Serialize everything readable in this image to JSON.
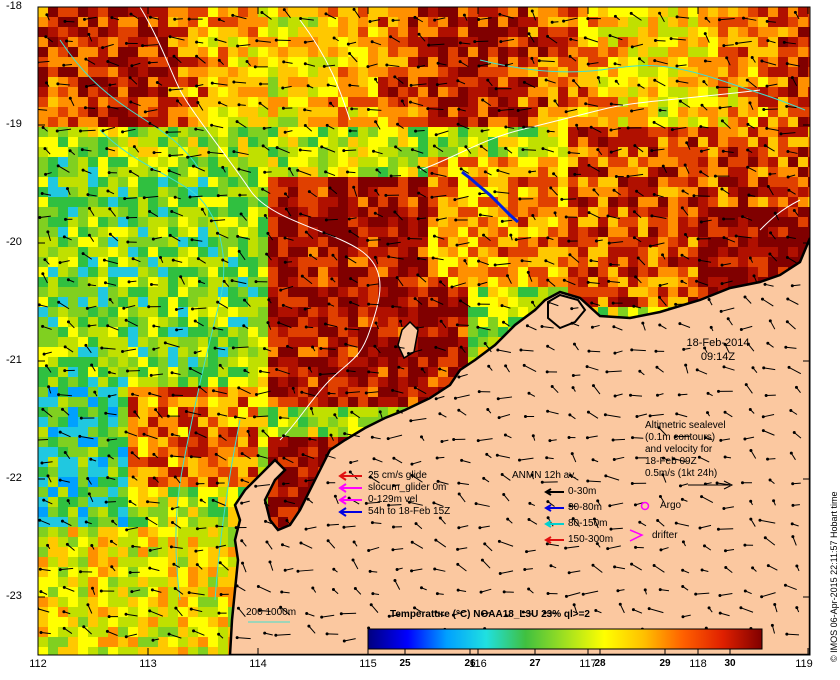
{
  "map": {
    "y_ticks": [
      "-18",
      "-19",
      "-20",
      "-21",
      "-22",
      "-23"
    ],
    "x_ticks": [
      "112",
      "113",
      "114",
      "115",
      "116",
      "117",
      "118",
      "119"
    ],
    "date_line1": "18-Feb-2014",
    "date_line2": "09:14Z",
    "credit": "© IMOS 06-Apr-2015 22:11:57 Hobart time",
    "land_color": "#fbc8a0"
  },
  "legend_glider": {
    "items": [
      {
        "label": "25 cm/s glide",
        "color": "#e01010"
      },
      {
        "label": "slocum_glider 0m",
        "color": "#ff00ff"
      },
      {
        "label": "0-129m vel",
        "color": "#ff00ff"
      },
      {
        "label": "54h to 18-Feb 15Z",
        "color": "#0000e0"
      }
    ]
  },
  "legend_anmn": {
    "title": "ANMN 12h av.",
    "items": [
      {
        "label": "0-30m",
        "color": "#000000"
      },
      {
        "label": "30-80m",
        "color": "#0000e0"
      },
      {
        "label": "80-150m",
        "color": "#00d0d0"
      },
      {
        "label": "150-300m",
        "color": "#e01010"
      }
    ]
  },
  "legend_altimetry": {
    "lines": [
      "Altimetric sealevel",
      "(0.1m contours)",
      "and velocity for",
      "18-Feb 09Z",
      "0.5m/s (1kt 24h)"
    ],
    "argo_label": "Argo",
    "drifter_label": "drifter"
  },
  "bathymetry_label": "200  1000m",
  "colorbar": {
    "title": "Temperature (°C) NOAA18_L3U 23% ql>=2",
    "ticks": [
      "25",
      "26",
      "27",
      "28",
      "29",
      "30"
    ],
    "stops": [
      "#00007f",
      "#0000ff",
      "#00a0ff",
      "#20e0e0",
      "#40c040",
      "#a0e020",
      "#ffff00",
      "#ffc000",
      "#ff6000",
      "#e02000",
      "#800000"
    ]
  }
}
